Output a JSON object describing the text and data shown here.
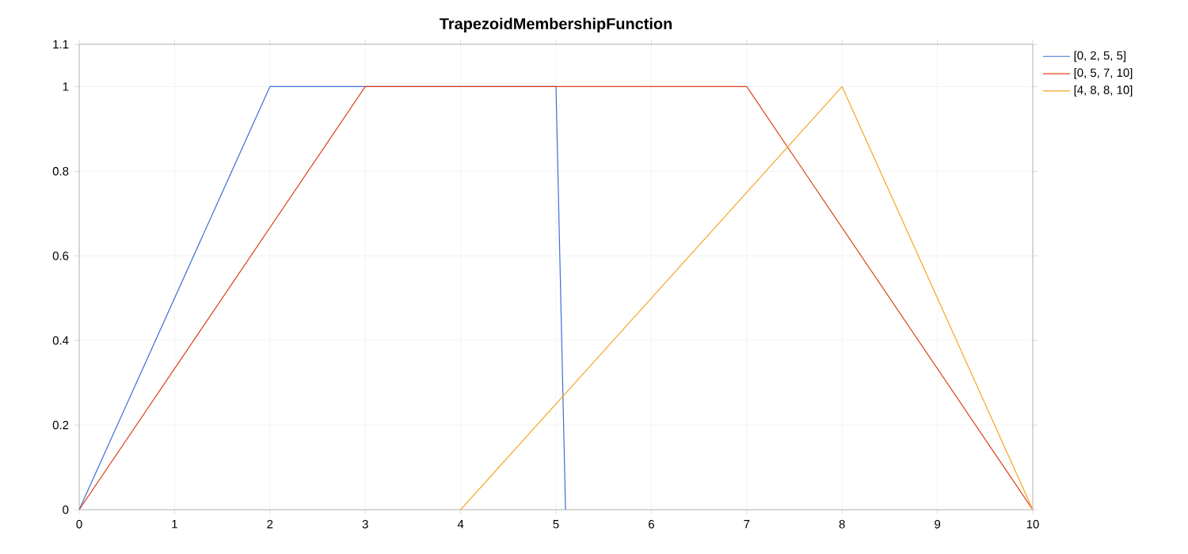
{
  "chart_data": {
    "type": "line",
    "title": "TrapezoidMembershipFunction",
    "series": [
      {
        "name": "[0, 2, 5, 5]",
        "color": "#3a6fd8",
        "x": [
          0,
          2,
          5,
          5.1
        ],
        "values": [
          0,
          1,
          1,
          0
        ]
      },
      {
        "name": "[0, 5, 7, 10]",
        "color": "#e0401c",
        "x": [
          0,
          3,
          7,
          10
        ],
        "values": [
          0,
          1,
          1,
          0
        ]
      },
      {
        "name": "[4, 8, 8, 10]",
        "color": "#f5a623",
        "x": [
          4,
          8,
          10
        ],
        "values": [
          0,
          1,
          0
        ]
      }
    ],
    "xlim": [
      0,
      10
    ],
    "xticks": [
      0,
      1,
      2,
      3,
      4,
      5,
      6,
      7,
      8,
      9,
      10
    ],
    "ylim": [
      0,
      1.1
    ],
    "yticks": [
      0,
      0.2,
      0.4,
      0.6,
      0.8,
      1,
      1.1
    ],
    "grid": true,
    "legend": "top right",
    "marker": "none",
    "line_style": "solid"
  }
}
